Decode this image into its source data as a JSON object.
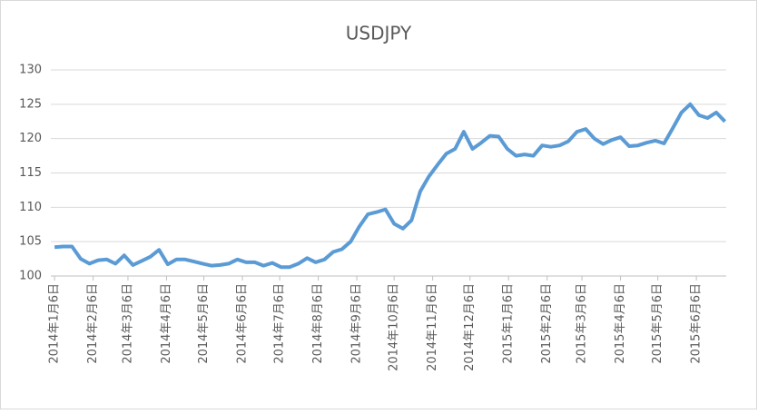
{
  "chart_data": {
    "type": "line",
    "title": "USDJPY",
    "x": [
      "2014-01-06",
      "2014-01-13",
      "2014-01-20",
      "2014-01-27",
      "2014-02-03",
      "2014-02-10",
      "2014-02-17",
      "2014-02-24",
      "2014-03-03",
      "2014-03-10",
      "2014-03-17",
      "2014-03-24",
      "2014-03-31",
      "2014-04-07",
      "2014-04-14",
      "2014-04-21",
      "2014-04-28",
      "2014-05-05",
      "2014-05-12",
      "2014-05-19",
      "2014-05-26",
      "2014-06-02",
      "2014-06-09",
      "2014-06-16",
      "2014-06-23",
      "2014-06-30",
      "2014-07-07",
      "2014-07-14",
      "2014-07-21",
      "2014-07-28",
      "2014-08-04",
      "2014-08-11",
      "2014-08-18",
      "2014-08-25",
      "2014-09-01",
      "2014-09-08",
      "2014-09-15",
      "2014-09-22",
      "2014-09-29",
      "2014-10-06",
      "2014-10-13",
      "2014-10-20",
      "2014-10-27",
      "2014-11-03",
      "2014-11-10",
      "2014-11-17",
      "2014-11-24",
      "2014-12-01",
      "2014-12-08",
      "2014-12-15",
      "2014-12-22",
      "2014-12-29",
      "2015-01-05",
      "2015-01-12",
      "2015-01-19",
      "2015-01-26",
      "2015-02-02",
      "2015-02-09",
      "2015-02-16",
      "2015-02-23",
      "2015-03-02",
      "2015-03-09",
      "2015-03-16",
      "2015-03-23",
      "2015-03-30",
      "2015-04-06",
      "2015-04-13",
      "2015-04-20",
      "2015-04-27",
      "2015-05-04",
      "2015-05-11",
      "2015-05-18",
      "2015-05-25",
      "2015-06-01",
      "2015-06-08",
      "2015-06-15",
      "2015-06-22",
      "2015-06-29"
    ],
    "series": [
      {
        "name": "USDJPY",
        "color": "#5b9bd5",
        "values": [
          104.2,
          104.3,
          104.3,
          102.5,
          101.8,
          102.3,
          102.4,
          101.8,
          103.0,
          101.6,
          102.2,
          102.8,
          103.8,
          101.7,
          102.4,
          102.4,
          102.1,
          101.8,
          101.5,
          101.6,
          101.8,
          102.4,
          102.0,
          102.0,
          101.5,
          101.9,
          101.3,
          101.3,
          101.8,
          102.6,
          102.0,
          102.4,
          103.5,
          103.9,
          105.0,
          107.2,
          109.0,
          109.3,
          109.7,
          107.6,
          106.9,
          108.1,
          112.3,
          114.5,
          116.2,
          117.8,
          118.5,
          121.0,
          118.5,
          119.4,
          120.4,
          120.3,
          118.5,
          117.5,
          117.7,
          117.5,
          119.0,
          118.8,
          119.0,
          119.6,
          121.0,
          121.4,
          120.0,
          119.2,
          119.8,
          120.2,
          118.9,
          119.0,
          119.4,
          119.7,
          119.3,
          121.5,
          123.8,
          125.0,
          123.4,
          123.0,
          123.8,
          122.5
        ]
      }
    ],
    "xlim": [
      "2014-01-03",
      "2015-06-30"
    ],
    "xticks": [
      {
        "value": "2014-01-06",
        "label": "2014年1月6日"
      },
      {
        "value": "2014-02-06",
        "label": "2014年2月6日"
      },
      {
        "value": "2014-03-06",
        "label": "2014年3月6日"
      },
      {
        "value": "2014-04-06",
        "label": "2014年4月6日"
      },
      {
        "value": "2014-05-06",
        "label": "2014年5月6日"
      },
      {
        "value": "2014-06-06",
        "label": "2014年6月6日"
      },
      {
        "value": "2014-07-06",
        "label": "2014年7月6日"
      },
      {
        "value": "2014-08-06",
        "label": "2014年8月6日"
      },
      {
        "value": "2014-09-06",
        "label": "2014年9月6日"
      },
      {
        "value": "2014-10-06",
        "label": "2014年10月6日"
      },
      {
        "value": "2014-11-06",
        "label": "2014年11月6日"
      },
      {
        "value": "2014-12-06",
        "label": "2014年12月6日"
      },
      {
        "value": "2015-01-06",
        "label": "2015年1月6日"
      },
      {
        "value": "2015-02-06",
        "label": "2015年2月6日"
      },
      {
        "value": "2015-03-06",
        "label": "2015年3月6日"
      },
      {
        "value": "2015-04-06",
        "label": "2015年4月6日"
      },
      {
        "value": "2015-05-06",
        "label": "2015年5月6日"
      },
      {
        "value": "2015-06-06",
        "label": "2015年6月6日"
      }
    ],
    "ylim": [
      100,
      130
    ],
    "yticks": [
      100,
      105,
      110,
      115,
      120,
      125,
      130
    ],
    "grid": true
  }
}
